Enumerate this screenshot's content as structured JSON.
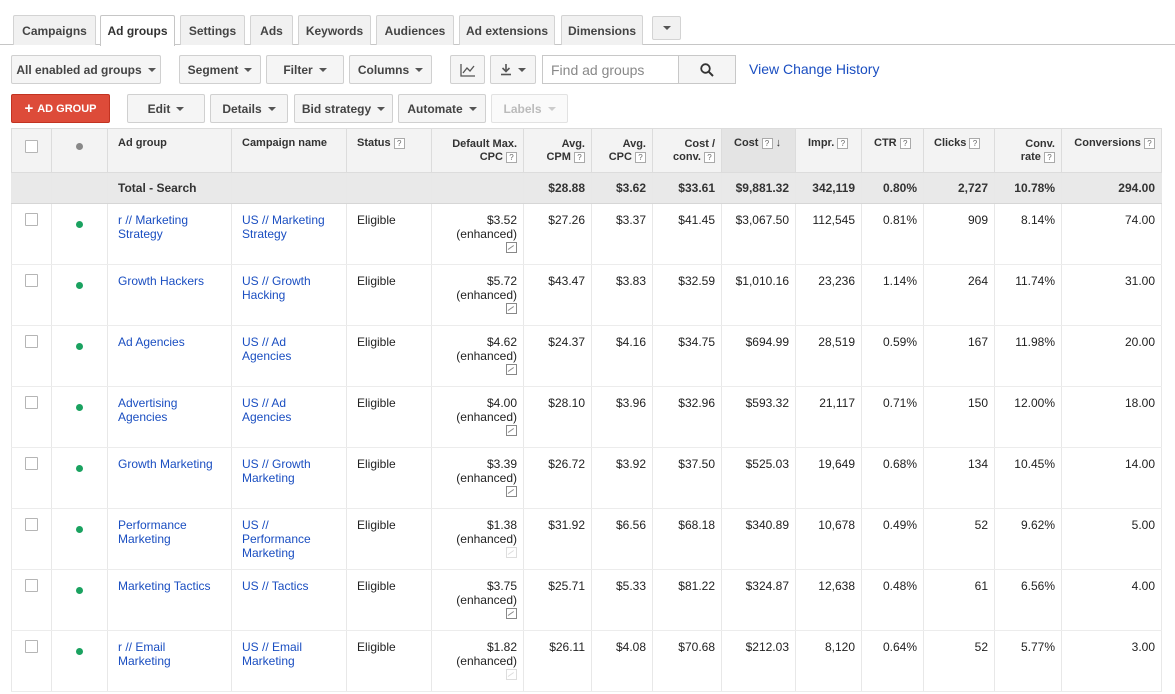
{
  "tabs": [
    {
      "label": "Campaigns",
      "active": false
    },
    {
      "label": "Ad groups",
      "active": true
    },
    {
      "label": "Settings",
      "active": false
    },
    {
      "label": "Ads",
      "active": false
    },
    {
      "label": "Keywords",
      "active": false
    },
    {
      "label": "Audiences",
      "active": false
    },
    {
      "label": "Ad extensions",
      "active": false
    },
    {
      "label": "Dimensions",
      "active": false
    }
  ],
  "toolbar": {
    "filter_scope": "All enabled ad groups",
    "segment": "Segment",
    "filter": "Filter",
    "columns": "Columns",
    "search_placeholder": "Find ad groups",
    "view_change_history": "View Change History"
  },
  "actions": {
    "add_ad_group": "AD GROUP",
    "edit": "Edit",
    "details": "Details",
    "bid_strategy": "Bid strategy",
    "automate": "Automate",
    "labels": "Labels"
  },
  "table": {
    "headers": {
      "ad_group": "Ad group",
      "campaign_name": "Campaign name",
      "status": "Status",
      "default_max_cpc_1": "Default Max.",
      "default_max_cpc_2": "CPC",
      "avg_cpm_1": "Avg.",
      "avg_cpm_2": "CPM",
      "avg_cpc_1": "Avg.",
      "avg_cpc_2": "CPC",
      "cost_conv_1": "Cost /",
      "cost_conv_2": "conv.",
      "cost": "Cost",
      "impr": "Impr.",
      "ctr": "CTR",
      "clicks": "Clicks",
      "conv_rate_1": "Conv.",
      "conv_rate_2": "rate",
      "conversions": "Conversions",
      "help": "?"
    },
    "total": {
      "label": "Total - Search",
      "avg_cpm": "$28.88",
      "avg_cpc": "$3.62",
      "cost_conv": "$33.61",
      "cost": "$9,881.32",
      "impr": "342,119",
      "ctr": "0.80%",
      "clicks": "2,727",
      "conv_rate": "10.78%",
      "conversions": "294.00"
    },
    "rows": [
      {
        "ad_group_1": "r // Marketing",
        "ad_group_2": "Strategy",
        "campaign_1": "US // Marketing",
        "campaign_2": "Strategy",
        "campaign_3": "",
        "status": "Eligible",
        "cpc": "$3.52",
        "enhanced": "(enhanced)",
        "avg_cpm": "$27.26",
        "avg_cpc": "$3.37",
        "cost_conv": "$41.45",
        "cost": "$3,067.50",
        "impr": "112,545",
        "ctr": "0.81%",
        "clicks": "909",
        "conv_rate": "8.14%",
        "conversions": "74.00"
      },
      {
        "ad_group_1": "Growth Hackers",
        "ad_group_2": "",
        "campaign_1": "US // Growth",
        "campaign_2": "Hacking",
        "campaign_3": "",
        "status": "Eligible",
        "cpc": "$5.72",
        "enhanced": "(enhanced)",
        "avg_cpm": "$43.47",
        "avg_cpc": "$3.83",
        "cost_conv": "$32.59",
        "cost": "$1,010.16",
        "impr": "23,236",
        "ctr": "1.14%",
        "clicks": "264",
        "conv_rate": "11.74%",
        "conversions": "31.00"
      },
      {
        "ad_group_1": "Ad Agencies",
        "ad_group_2": "",
        "campaign_1": "US // Ad",
        "campaign_2": "Agencies",
        "campaign_3": "",
        "status": "Eligible",
        "cpc": "$4.62",
        "enhanced": "(enhanced)",
        "avg_cpm": "$24.37",
        "avg_cpc": "$4.16",
        "cost_conv": "$34.75",
        "cost": "$694.99",
        "impr": "28,519",
        "ctr": "0.59%",
        "clicks": "167",
        "conv_rate": "11.98%",
        "conversions": "20.00"
      },
      {
        "ad_group_1": "Advertising",
        "ad_group_2": "Agencies",
        "campaign_1": "US // Ad",
        "campaign_2": "Agencies",
        "campaign_3": "",
        "status": "Eligible",
        "cpc": "$4.00",
        "enhanced": "(enhanced)",
        "avg_cpm": "$28.10",
        "avg_cpc": "$3.96",
        "cost_conv": "$32.96",
        "cost": "$593.32",
        "impr": "21,117",
        "ctr": "0.71%",
        "clicks": "150",
        "conv_rate": "12.00%",
        "conversions": "18.00"
      },
      {
        "ad_group_1": "Growth Marketing",
        "ad_group_2": "",
        "campaign_1": "US // Growth",
        "campaign_2": "Marketing",
        "campaign_3": "",
        "status": "Eligible",
        "cpc": "$3.39",
        "enhanced": "(enhanced)",
        "avg_cpm": "$26.72",
        "avg_cpc": "$3.92",
        "cost_conv": "$37.50",
        "cost": "$525.03",
        "impr": "19,649",
        "ctr": "0.68%",
        "clicks": "134",
        "conv_rate": "10.45%",
        "conversions": "14.00"
      },
      {
        "ad_group_1": "Performance",
        "ad_group_2": "Marketing",
        "campaign_1": "US //",
        "campaign_2": "Performance",
        "campaign_3": "Marketing",
        "status": "Eligible",
        "cpc": "$1.38",
        "enhanced": "(enhanced)",
        "avg_cpm": "$31.92",
        "avg_cpc": "$6.56",
        "cost_conv": "$68.18",
        "cost": "$340.89",
        "impr": "10,678",
        "ctr": "0.49%",
        "clicks": "52",
        "conv_rate": "9.62%",
        "conversions": "5.00"
      },
      {
        "ad_group_1": "Marketing Tactics",
        "ad_group_2": "",
        "campaign_1": "US // Tactics",
        "campaign_2": "",
        "campaign_3": "",
        "status": "Eligible",
        "cpc": "$3.75",
        "enhanced": "(enhanced)",
        "avg_cpm": "$25.71",
        "avg_cpc": "$5.33",
        "cost_conv": "$81.22",
        "cost": "$324.87",
        "impr": "12,638",
        "ctr": "0.48%",
        "clicks": "61",
        "conv_rate": "6.56%",
        "conversions": "4.00"
      },
      {
        "ad_group_1": "r // Email",
        "ad_group_2": "Marketing",
        "campaign_1": "US // Email",
        "campaign_2": "Marketing",
        "campaign_3": "",
        "status": "Eligible",
        "cpc": "$1.82",
        "enhanced": "(enhanced)",
        "avg_cpm": "$26.11",
        "avg_cpc": "$4.08",
        "cost_conv": "$70.68",
        "cost": "$212.03",
        "impr": "8,120",
        "ctr": "0.64%",
        "clicks": "52",
        "conv_rate": "5.77%",
        "conversions": "3.00"
      }
    ]
  },
  "colors": {
    "accent_red": "#dd4b39",
    "link_blue": "#1a4ec1",
    "status_green": "#1aa260"
  }
}
